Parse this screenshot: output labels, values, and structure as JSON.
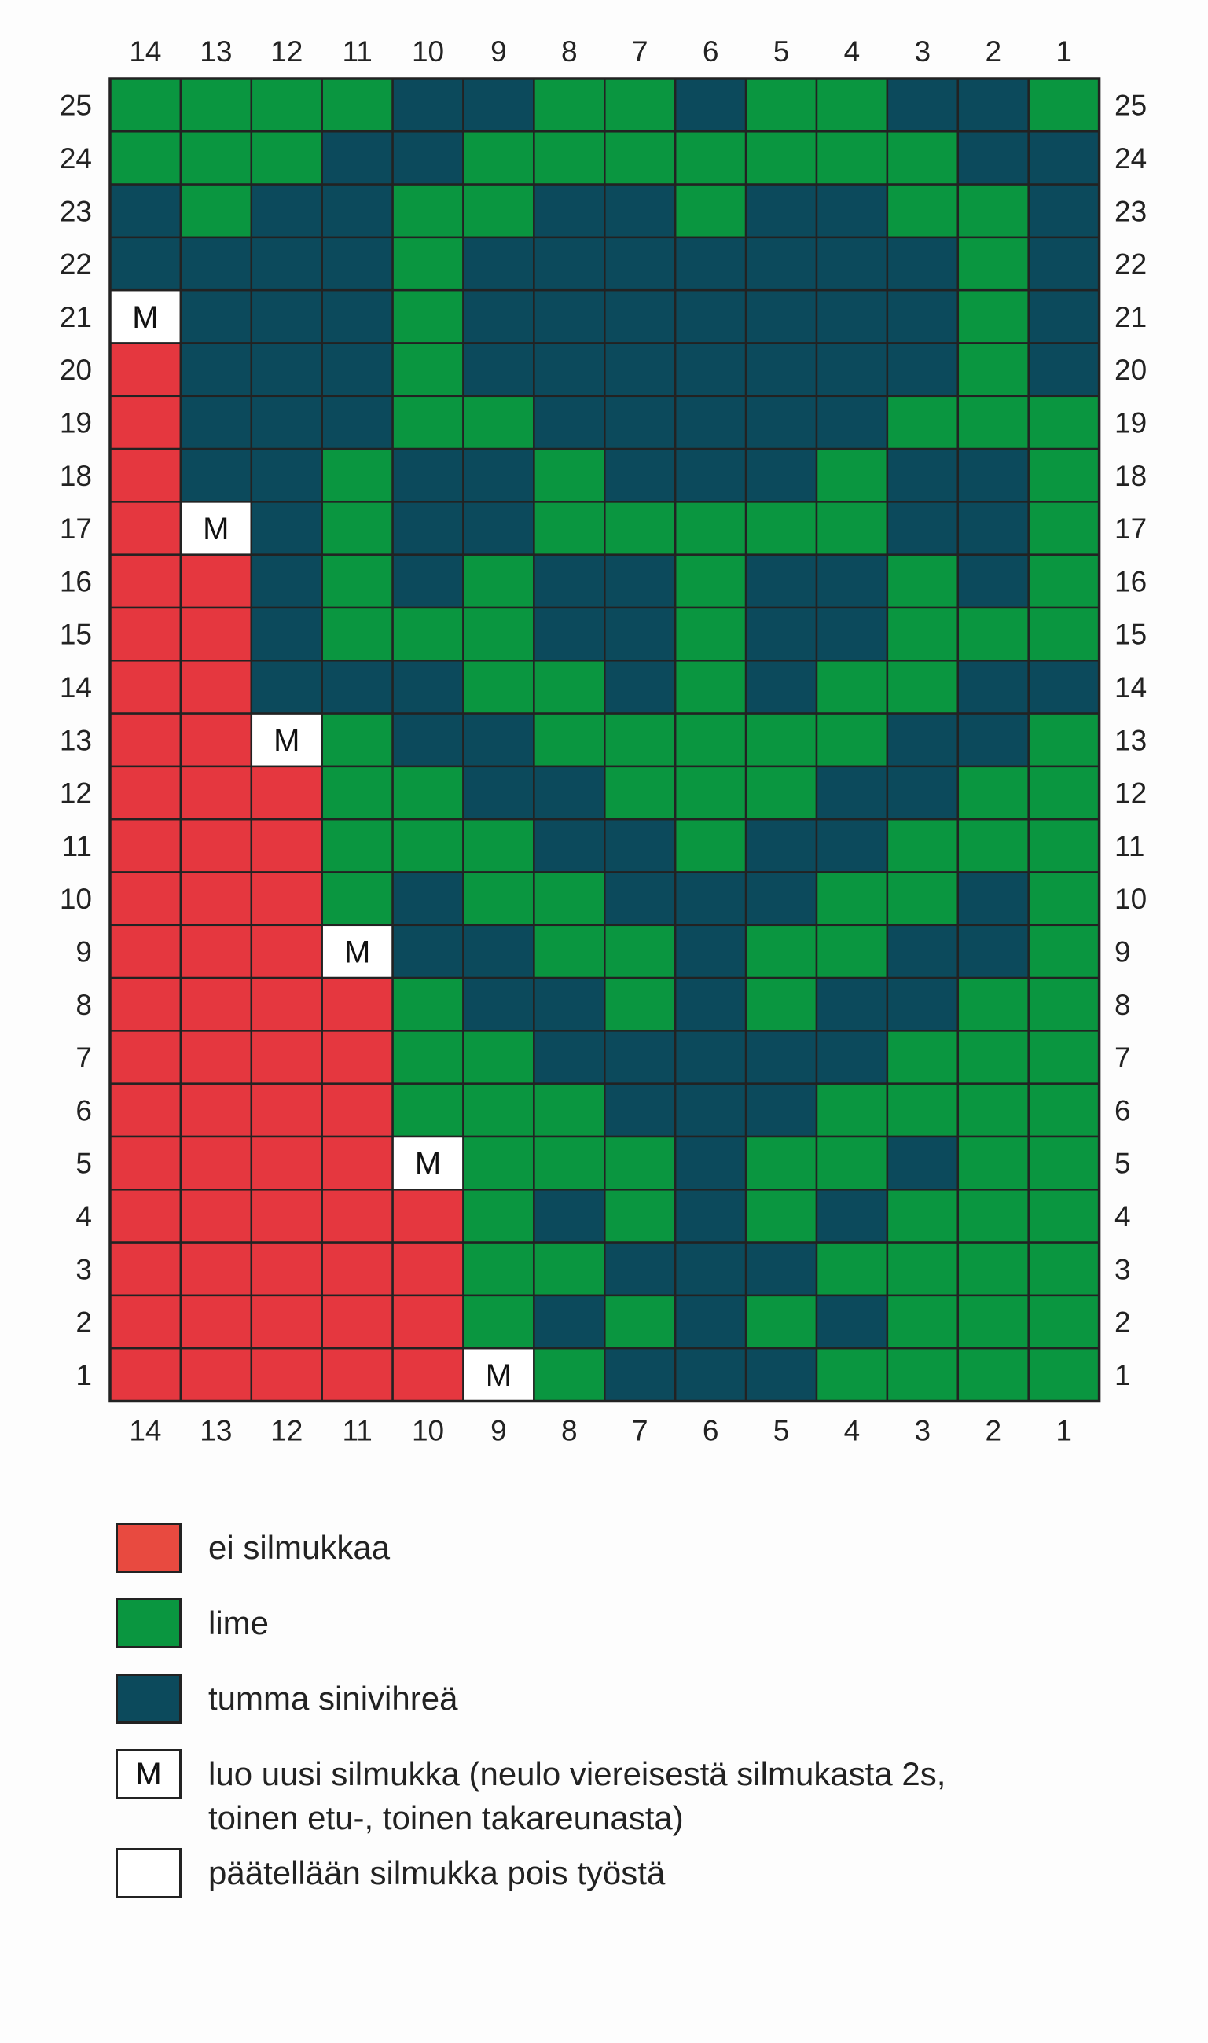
{
  "chart": {
    "column_numbers": [
      "14",
      "13",
      "12",
      "11",
      "10",
      "9",
      "8",
      "7",
      "6",
      "5",
      "4",
      "3",
      "2",
      "1"
    ],
    "row_numbers": [
      "25",
      "24",
      "23",
      "22",
      "21",
      "20",
      "19",
      "18",
      "17",
      "16",
      "15",
      "14",
      "13",
      "12",
      "11",
      "10",
      "9",
      "8",
      "7",
      "6",
      "5",
      "4",
      "3",
      "2",
      "1"
    ],
    "marker_text": "M",
    "colors": {
      "R": "#e5373f",
      "G": "#0a9640",
      "D": "#0c4a5c",
      "M": "#ffffff",
      "W": "#ffffff",
      "grid": "#222222"
    },
    "cell_codes": {
      "R": "ei silmukkaa",
      "G": "lime",
      "D": "tumma sinivihreä",
      "M": "luo uusi silmukka",
      "W": "päätellään silmukka pois työstä"
    },
    "rows": [
      "GGGGDDGGDGGDDG",
      "GGGDDGGGGGGGDD",
      "DGDDGGDDGDDGGD",
      "DDDDGDDDDDDDGD",
      "MDDDGDDDDDDDGD",
      "RDDDGDDDDDDDGD",
      "RDDDGGDDDDDGGG",
      "RDDGDDGDDDGDDG",
      "RMDGDDGGGGGDDG",
      "RRDGDGDDGDDGDG",
      "RRDGGGDDGDDGGG",
      "RRDDDGGDGDGGDD",
      "RRMGDDGGGGGDDG",
      "RRRGGDDGGGDDGG",
      "RRRGGGDDGDDGGG",
      "RRRGDGGDDDGGDG",
      "RRRMDDGGDGGDDG",
      "RRRRGDDGDGDDGG",
      "RRRRGGDDDDDGGG",
      "RRRRGGGDDDGGGG",
      "RRRRMGGGDGGDGG",
      "RRRRRGDGDGDGGG",
      "RRRRRGGDDDGGGG",
      "RRRRRGDGDGDGGG",
      "RRRRRMGDDDGGGG"
    ]
  },
  "legend": {
    "items": [
      {
        "label": "ei silmukkaa",
        "color": "#e84a40",
        "symbol": ""
      },
      {
        "label": "lime",
        "color": "#0a9640",
        "symbol": ""
      },
      {
        "label": "tumma sinivihreä",
        "color": "#0c4a5c",
        "symbol": ""
      },
      {
        "label_line1": "luo uusi silmukka (neulo viereisestä silmukasta 2s,",
        "label_line2": "toinen etu-, toinen takareunasta)",
        "color": "#ffffff",
        "symbol": "M"
      },
      {
        "label": "päätellään silmukka pois työstä",
        "color": "#ffffff",
        "symbol": ""
      }
    ]
  }
}
